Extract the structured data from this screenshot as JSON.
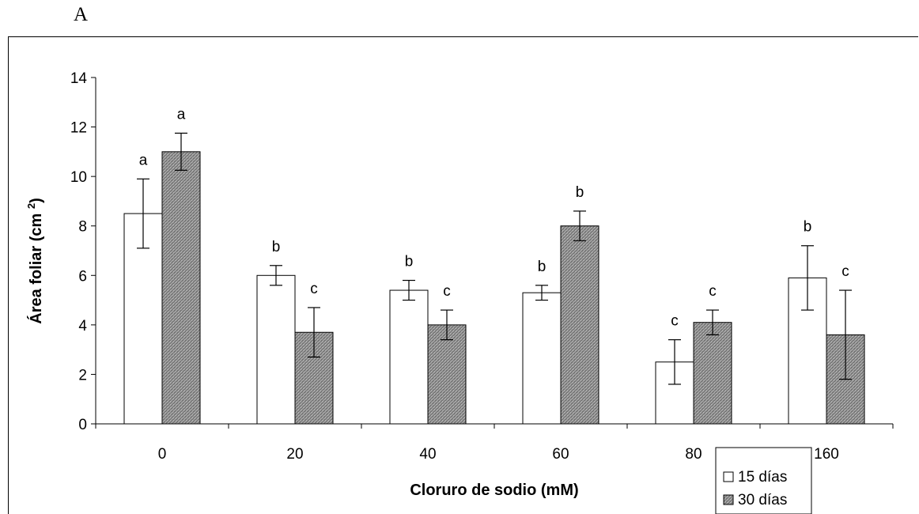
{
  "panel_label": "A",
  "chart_data": {
    "type": "bar",
    "title": "",
    "xlabel": "Cloruro de sodio (mM)",
    "ylabel": "Área foliar (cm ²)",
    "ylabel_main": "Área foliar (cm ",
    "ylabel_sup": "2",
    "ylabel_close": ")",
    "ylim": [
      0,
      14
    ],
    "yticks": [
      "0",
      "2",
      "4",
      "6",
      "8",
      "10",
      "12",
      "14"
    ],
    "categories": [
      "0",
      "20",
      "40",
      "60",
      "80",
      "160"
    ],
    "series": [
      {
        "name": "15 días",
        "color": "#ffffff",
        "pattern": "none",
        "values": [
          8.5,
          6.0,
          5.4,
          5.3,
          2.5,
          5.9
        ],
        "errors": [
          1.4,
          0.4,
          0.4,
          0.3,
          0.9,
          1.3
        ],
        "letters": [
          "a",
          "b",
          "b",
          "b",
          "c",
          "b"
        ]
      },
      {
        "name": "30 días",
        "color": "#808080",
        "pattern": "crosshatch-gray",
        "values": [
          11.0,
          3.7,
          4.0,
          8.0,
          4.1,
          3.6
        ],
        "errors": [
          0.75,
          1.0,
          0.6,
          0.6,
          0.5,
          1.8
        ],
        "letters": [
          "a",
          "c",
          "c",
          "b",
          "c",
          "c"
        ]
      }
    ],
    "legend_position": "bottom-right",
    "grid": false
  }
}
